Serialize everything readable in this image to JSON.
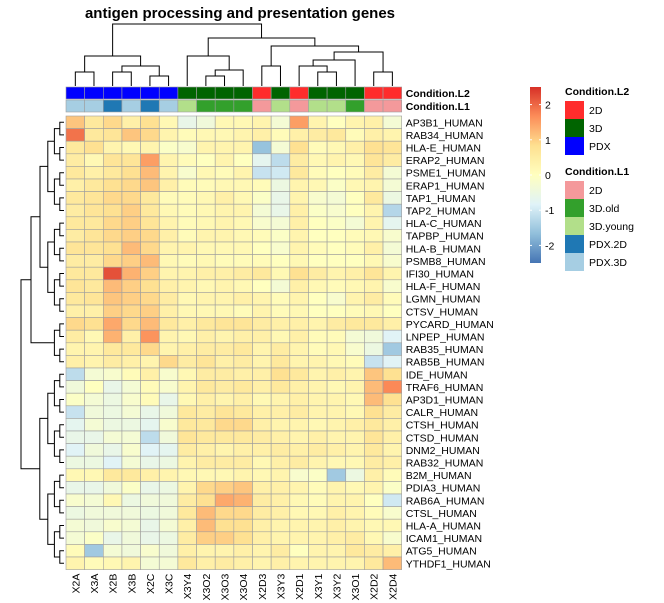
{
  "chart_data": {
    "type": "heatmap",
    "title": "antigen processing and presentation genes",
    "columns": [
      "X2A",
      "X3A",
      "X2B",
      "X3B",
      "X2C",
      "X3C",
      "X3Y4",
      "X3O2",
      "X3O3",
      "X3O4",
      "X2D3",
      "X3Y3",
      "X2D1",
      "X3Y1",
      "X3Y2",
      "X3O1",
      "X2D2",
      "X2D4"
    ],
    "rows": [
      "AP3B1_HUMAN",
      "RAB34_HUMAN",
      "HLA-E_HUMAN",
      "ERAP2_HUMAN",
      "PSME1_HUMAN",
      "ERAP1_HUMAN",
      "TAP1_HUMAN",
      "TAP2_HUMAN",
      "HLA-C_HUMAN",
      "TAPBP_HUMAN",
      "HLA-B_HUMAN",
      "PSMB8_HUMAN",
      "IFI30_HUMAN",
      "HLA-F_HUMAN",
      "LGMN_HUMAN",
      "CTSV_HUMAN",
      "PYCARD_HUMAN",
      "LNPEP_HUMAN",
      "RAB35_HUMAN",
      "RAB5B_HUMAN",
      "IDE_HUMAN",
      "TRAF6_HUMAN",
      "AP3D1_HUMAN",
      "CALR_HUMAN",
      "CTSH_HUMAN",
      "CTSD_HUMAN",
      "DNM2_HUMAN",
      "RAB32_HUMAN",
      "B2M_HUMAN",
      "PDIA3_HUMAN",
      "RAB6A_HUMAN",
      "CTSL_HUMAN",
      "HLA-A_HUMAN",
      "ICAM1_HUMAN",
      "ATG5_HUMAN",
      "YTHDF1_HUMAN"
    ],
    "values": [
      [
        1.1,
        0.6,
        0.9,
        0.4,
        0.8,
        0.2,
        -0.6,
        -0.4,
        0.2,
        0.2,
        0.3,
        -0.3,
        1.5,
        0.3,
        0.0,
        0.3,
        0.4,
        -0.3
      ],
      [
        1.9,
        0.6,
        0.7,
        1.1,
        0.9,
        0.3,
        0.1,
        0.2,
        0.2,
        0.3,
        0.4,
        0.1,
        0.4,
        0.5,
        0.6,
        0.1,
        0.4,
        0.3
      ],
      [
        0.6,
        0.8,
        0.3,
        0.2,
        0.3,
        -0.1,
        -0.2,
        0.3,
        0.3,
        0.3,
        -1.6,
        -0.3,
        0.8,
        0.1,
        0.2,
        0.4,
        0.8,
        0.7
      ],
      [
        0.5,
        0.2,
        0.7,
        0.7,
        1.5,
        0.3,
        0.1,
        0.0,
        0.3,
        0.0,
        -0.7,
        -1.2,
        0.5,
        0.2,
        0.3,
        0.2,
        0.7,
        0.5
      ],
      [
        0.6,
        0.4,
        0.6,
        0.8,
        1.2,
        0.3,
        -0.2,
        0.2,
        0.1,
        0.3,
        -1.1,
        -1.0,
        0.6,
        0.1,
        0.0,
        0.1,
        0.5,
        -0.3
      ],
      [
        0.4,
        0.6,
        0.8,
        0.9,
        1.1,
        0.4,
        0.1,
        0.1,
        0.2,
        0.2,
        0.1,
        -0.5,
        0.3,
        0.2,
        -0.1,
        0.2,
        0.3,
        -0.3
      ],
      [
        0.6,
        0.7,
        0.9,
        0.9,
        0.6,
        0.1,
        0.1,
        0.2,
        0.4,
        0.2,
        -0.1,
        -0.6,
        0.3,
        -0.2,
        -0.3,
        0.0,
        0.6,
        -0.5
      ],
      [
        0.5,
        0.7,
        0.8,
        1.0,
        0.6,
        0.2,
        0.1,
        0.2,
        0.3,
        0.3,
        -0.3,
        -0.6,
        0.4,
        -0.1,
        -0.2,
        0.0,
        0.3,
        -1.3
      ],
      [
        0.6,
        0.6,
        0.9,
        1.0,
        0.7,
        0.3,
        0.1,
        0.2,
        0.3,
        0.2,
        -0.2,
        -0.3,
        0.4,
        0.0,
        -0.1,
        -0.3,
        0.3,
        -0.7
      ],
      [
        0.5,
        0.7,
        0.9,
        1.0,
        0.9,
        0.4,
        0.1,
        0.3,
        0.3,
        0.2,
        0.1,
        -0.1,
        0.3,
        0.0,
        0.0,
        0.1,
        0.2,
        -0.2
      ],
      [
        0.7,
        0.7,
        0.8,
        1.2,
        0.9,
        0.3,
        0.3,
        0.2,
        0.2,
        0.2,
        0.0,
        -0.2,
        0.3,
        0.1,
        0.0,
        0.1,
        0.4,
        -0.3
      ],
      [
        0.5,
        0.5,
        0.9,
        1.0,
        1.2,
        0.2,
        0.1,
        0.2,
        0.1,
        0.1,
        0.1,
        0.0,
        0.2,
        0.0,
        0.0,
        0.0,
        0.2,
        -0.2
      ],
      [
        0.6,
        0.6,
        2.2,
        1.3,
        1.0,
        0.3,
        0.3,
        0.4,
        0.4,
        0.5,
        0.6,
        0.2,
        0.8,
        0.5,
        0.3,
        0.4,
        0.7,
        0.3
      ],
      [
        0.7,
        0.6,
        1.2,
        1.0,
        0.8,
        0.4,
        0.3,
        0.2,
        0.3,
        0.2,
        0.0,
        -0.3,
        0.4,
        0.2,
        0.1,
        0.2,
        0.3,
        -0.2
      ],
      [
        0.6,
        0.7,
        1.1,
        1.0,
        0.9,
        0.5,
        0.2,
        0.3,
        0.3,
        0.4,
        0.3,
        0.1,
        0.3,
        0.0,
        -0.2,
        0.3,
        0.5,
        0.1
      ],
      [
        0.4,
        0.4,
        1.0,
        0.9,
        1.0,
        0.4,
        0.2,
        0.2,
        0.2,
        0.1,
        0.3,
        0.1,
        0.2,
        0.0,
        0.0,
        0.1,
        0.2,
        0.0
      ],
      [
        0.9,
        0.8,
        1.4,
        0.9,
        1.2,
        0.6,
        0.4,
        0.6,
        0.7,
        0.7,
        0.5,
        0.4,
        0.4,
        0.3,
        0.5,
        0.6,
        0.6,
        0.4
      ],
      [
        0.5,
        0.2,
        1.3,
        0.4,
        1.6,
        0.3,
        0.2,
        0.4,
        0.3,
        0.4,
        0.4,
        0.2,
        0.4,
        0.1,
        0.1,
        -0.3,
        -0.4,
        -0.8
      ],
      [
        0.3,
        0.3,
        0.6,
        0.6,
        0.9,
        0.3,
        0.4,
        0.5,
        0.5,
        0.6,
        0.3,
        0.5,
        0.3,
        0.1,
        0.2,
        -0.2,
        -0.5,
        -1.5
      ],
      [
        0.4,
        0.3,
        0.5,
        0.4,
        0.3,
        0.9,
        0.5,
        0.7,
        0.4,
        0.5,
        0.3,
        0.6,
        0.3,
        0.3,
        0.2,
        0.1,
        -1.1,
        -0.8
      ],
      [
        -1.2,
        -0.3,
        -0.2,
        0.1,
        0.4,
        -0.2,
        0.2,
        0.5,
        0.5,
        0.4,
        0.4,
        0.8,
        0.6,
        0.3,
        0.4,
        0.3,
        1.1,
        0.8
      ],
      [
        -0.4,
        0.0,
        -0.6,
        -0.3,
        0.1,
        -0.2,
        0.3,
        0.6,
        0.5,
        0.6,
        0.4,
        0.6,
        0.4,
        0.3,
        0.2,
        0.3,
        1.2,
        1.7
      ],
      [
        -0.1,
        -0.3,
        -0.5,
        -0.2,
        0.1,
        -0.6,
        0.2,
        0.4,
        0.3,
        0.4,
        0.2,
        0.3,
        0.4,
        0.3,
        0.3,
        0.2,
        1.2,
        0.8
      ],
      [
        -1.1,
        -0.4,
        -0.5,
        -0.3,
        -0.6,
        -0.4,
        0.6,
        0.5,
        0.7,
        0.6,
        0.4,
        0.4,
        0.5,
        0.3,
        0.3,
        0.2,
        0.8,
        0.5
      ],
      [
        -0.7,
        -0.3,
        -0.5,
        -0.5,
        -0.7,
        -0.2,
        0.6,
        0.6,
        0.9,
        0.9,
        0.4,
        0.3,
        0.3,
        0.2,
        0.3,
        0.4,
        0.6,
        0.4
      ],
      [
        -0.6,
        -0.6,
        -0.3,
        -0.3,
        -1.2,
        -0.4,
        0.7,
        0.6,
        0.6,
        0.6,
        0.5,
        0.4,
        0.3,
        0.4,
        0.3,
        0.3,
        0.7,
        0.4
      ],
      [
        -0.8,
        -0.4,
        -0.6,
        -0.2,
        -0.8,
        -0.7,
        0.5,
        0.4,
        0.3,
        0.4,
        0.4,
        0.5,
        0.4,
        0.5,
        0.4,
        0.3,
        0.6,
        0.3
      ],
      [
        -0.5,
        -0.5,
        -0.8,
        -0.3,
        -0.6,
        -0.5,
        0.3,
        0.5,
        0.5,
        0.5,
        0.2,
        0.4,
        0.5,
        0.3,
        0.2,
        0.2,
        0.5,
        0.4
      ],
      [
        0.2,
        0.2,
        0.6,
        0.6,
        0.4,
        0.3,
        0.2,
        0.2,
        0.2,
        0.3,
        0.2,
        0.3,
        -0.2,
        -0.1,
        -1.5,
        -0.5,
        0.4,
        0.1
      ],
      [
        -0.6,
        -0.6,
        -0.4,
        -0.1,
        -0.6,
        -0.5,
        0.3,
        0.9,
        1.0,
        1.1,
        0.4,
        0.4,
        0.3,
        0.1,
        0.3,
        0.2,
        0.3,
        -0.1
      ],
      [
        -0.2,
        -0.3,
        0.2,
        -0.5,
        -0.4,
        -0.4,
        0.5,
        0.8,
        1.4,
        1.3,
        0.5,
        0.4,
        0.2,
        0.1,
        0.3,
        0.3,
        0.0,
        -1.0
      ],
      [
        -0.5,
        -0.4,
        -0.4,
        -0.4,
        -0.5,
        -0.4,
        0.6,
        1.2,
        0.9,
        0.9,
        0.5,
        0.4,
        0.2,
        0.2,
        0.4,
        0.3,
        0.1,
        -0.2
      ],
      [
        -0.3,
        -0.4,
        -0.2,
        -0.3,
        -0.6,
        -0.3,
        0.4,
        1.2,
        0.8,
        0.8,
        0.4,
        0.3,
        0.3,
        0.3,
        0.4,
        0.3,
        0.2,
        0.2
      ],
      [
        -0.3,
        -0.1,
        -0.6,
        -0.4,
        -0.6,
        -0.5,
        0.5,
        1.0,
        1.0,
        0.8,
        0.4,
        0.3,
        0.3,
        0.3,
        0.4,
        0.5,
        0.2,
        -0.2
      ],
      [
        0.1,
        -1.5,
        -0.3,
        -0.4,
        -0.2,
        -0.4,
        0.4,
        0.3,
        0.3,
        0.4,
        0.3,
        0.5,
        0.0,
        0.3,
        0.3,
        0.6,
        0.5,
        0.4
      ],
      [
        0.3,
        0.1,
        0.2,
        0.3,
        -0.3,
        -0.3,
        0.6,
        0.4,
        0.5,
        0.4,
        0.3,
        0.4,
        0.3,
        0.3,
        0.3,
        0.3,
        0.6,
        1.2
      ]
    ],
    "annotations": {
      "Condition.L2": [
        "PDX",
        "PDX",
        "PDX",
        "PDX",
        "PDX",
        "PDX",
        "3D",
        "3D",
        "3D",
        "3D",
        "2D",
        "3D",
        "2D",
        "3D",
        "3D",
        "3D",
        "2D",
        "2D"
      ],
      "Condition.L1": [
        "PDX.3D",
        "PDX.3D",
        "PDX.2D",
        "PDX.3D",
        "PDX.2D",
        "PDX.3D",
        "3D.young",
        "3D.old",
        "3D.old",
        "3D.old",
        "2D",
        "3D.young",
        "2D",
        "3D.young",
        "3D.young",
        "3D.old",
        "2D",
        "2D"
      ]
    },
    "legends": {
      "Condition.L2": [
        {
          "label": "2D",
          "color": "#ff2c2c"
        },
        {
          "label": "3D",
          "color": "#006400"
        },
        {
          "label": "PDX",
          "color": "#0000ff"
        }
      ],
      "Condition.L1": [
        {
          "label": "2D",
          "color": "#f4999b"
        },
        {
          "label": "3D.old",
          "color": "#33a02c"
        },
        {
          "label": "3D.young",
          "color": "#b2df8a"
        },
        {
          "label": "PDX.2D",
          "color": "#1f78b4"
        },
        {
          "label": "PDX.3D",
          "color": "#a6cee3"
        }
      ]
    },
    "color_scale": {
      "min": -2.5,
      "max": 2.5,
      "ticks": [
        2,
        1,
        0,
        -1,
        -2
      ],
      "colors": [
        "#4575b4",
        "#91bfdb",
        "#e0f3f8",
        "#ffffbf",
        "#fee090",
        "#fc8d59",
        "#d73027"
      ]
    },
    "annotation_labels": [
      "Condition.L2",
      "Condition.L1"
    ]
  }
}
